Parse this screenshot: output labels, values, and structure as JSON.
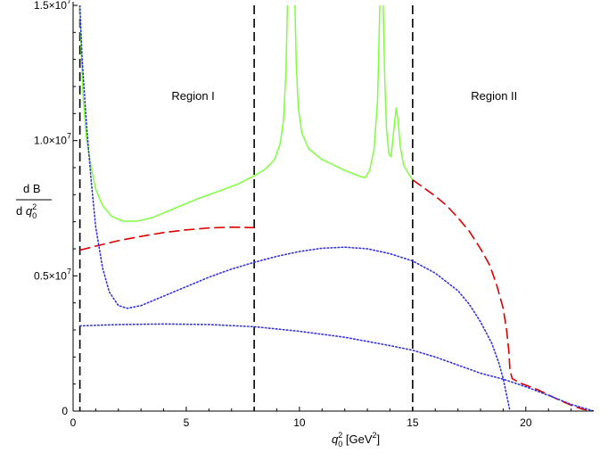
{
  "chart_data": {
    "type": "line",
    "xlim": [
      0,
      23
    ],
    "ylim": [
      0,
      15000000
    ],
    "x_ticks": [
      {
        "value": 0,
        "label": "0"
      },
      {
        "value": 5,
        "label": "5"
      },
      {
        "value": 10,
        "label": "10"
      },
      {
        "value": 15,
        "label": "15"
      },
      {
        "value": 20,
        "label": "20"
      }
    ],
    "y_ticks": [
      {
        "value": 0,
        "mantissa": "0",
        "exponent": ""
      },
      {
        "value": 5000000,
        "mantissa": "0.5×10",
        "exponent": "7"
      },
      {
        "value": 10000000,
        "mantissa": "1.0×10",
        "exponent": "7"
      },
      {
        "value": 15000000,
        "mantissa": "1.5×10",
        "exponent": "7"
      }
    ],
    "xlabel": {
      "var": "q",
      "sup": "2",
      "sub": "0",
      "unit_open": " [GeV",
      "unit_sup": "2",
      "unit_close": "]"
    },
    "ylabel": {
      "numerator": "d B",
      "denominator_d": "d ",
      "denominator_var": "q",
      "denominator_sup": "2",
      "denominator_sub": "0"
    },
    "annotations": [
      {
        "text": "Region I",
        "x": 5.3,
        "y": 11500000
      },
      {
        "text": "Region II",
        "x": 18.6,
        "y": 11500000
      }
    ],
    "vlines": [
      0.3,
      8.0,
      15.0
    ],
    "series": [
      {
        "style": "solid",
        "color": "#7fff3f",
        "segments": [
          [
            [
              0.3,
              15000000
            ],
            [
              0.35,
              13500000
            ],
            [
              0.45,
              11500000
            ],
            [
              0.6,
              10000000
            ],
            [
              0.8,
              9000000
            ],
            [
              1.0,
              8200000
            ],
            [
              1.3,
              7600000
            ],
            [
              1.7,
              7200000
            ],
            [
              2.2,
              7020000
            ],
            [
              2.8,
              7020000
            ],
            [
              3.5,
              7150000
            ],
            [
              4.5,
              7500000
            ],
            [
              5.5,
              7850000
            ],
            [
              6.5,
              8150000
            ],
            [
              7.3,
              8400000
            ],
            [
              8.0,
              8700000
            ],
            [
              8.5,
              8950000
            ],
            [
              8.9,
              9300000
            ],
            [
              9.15,
              9900000
            ],
            [
              9.3,
              10800000
            ],
            [
              9.4,
              12500000
            ],
            [
              9.47,
              15000000
            ]
          ],
          [
            [
              9.8,
              15000000
            ],
            [
              9.86,
              12800000
            ],
            [
              9.95,
              11200000
            ],
            [
              10.1,
              10300000
            ],
            [
              10.4,
              9700000
            ],
            [
              11.0,
              9300000
            ],
            [
              12.0,
              8900000
            ],
            [
              12.6,
              8700000
            ],
            [
              12.9,
              8620000
            ],
            [
              13.1,
              8900000
            ],
            [
              13.3,
              9700000
            ],
            [
              13.45,
              11500000
            ],
            [
              13.55,
              15000000
            ]
          ],
          [
            [
              13.7,
              15000000
            ],
            [
              13.76,
              12500000
            ],
            [
              13.84,
              10500000
            ],
            [
              13.95,
              9500000
            ],
            [
              14.05,
              9400000
            ],
            [
              14.18,
              10500000
            ],
            [
              14.27,
              11200000
            ],
            [
              14.35,
              10800000
            ],
            [
              14.45,
              9800000
            ],
            [
              14.6,
              9100000
            ],
            [
              14.8,
              8800000
            ],
            [
              15.0,
              8550000
            ]
          ]
        ]
      },
      {
        "style": "dashed",
        "color": "#dd0000",
        "segments": [
          [
            [
              0.3,
              5950000
            ],
            [
              1.0,
              6100000
            ],
            [
              2.0,
              6300000
            ],
            [
              3.0,
              6460000
            ],
            [
              4.0,
              6600000
            ],
            [
              5.0,
              6700000
            ],
            [
              6.0,
              6770000
            ],
            [
              7.0,
              6800000
            ],
            [
              8.0,
              6780000
            ]
          ],
          [
            [
              15.0,
              8550000
            ],
            [
              15.5,
              8250000
            ],
            [
              16.0,
              7950000
            ],
            [
              16.5,
              7600000
            ],
            [
              17.0,
              7150000
            ],
            [
              17.5,
              6650000
            ],
            [
              18.0,
              6000000
            ],
            [
              18.4,
              5400000
            ],
            [
              18.7,
              4700000
            ],
            [
              19.0,
              3800000
            ],
            [
              19.15,
              3000000
            ],
            [
              19.25,
              2200000
            ],
            [
              19.3,
              1500000
            ],
            [
              19.4,
              1200000
            ],
            [
              19.8,
              1020000
            ],
            [
              20.5,
              800000
            ],
            [
              21.0,
              600000
            ],
            [
              21.5,
              400000
            ],
            [
              22.0,
              220000
            ],
            [
              22.5,
              70000
            ],
            [
              23.0,
              0
            ]
          ]
        ]
      },
      {
        "style": "dotted",
        "color": "#3333dd",
        "segments": [
          [
            [
              0.3,
              15000000
            ],
            [
              0.4,
              13000000
            ],
            [
              0.6,
              10500000
            ],
            [
              0.8,
              8500000
            ],
            [
              1.0,
              6800000
            ],
            [
              1.3,
              5300000
            ],
            [
              1.6,
              4400000
            ],
            [
              2.0,
              3900000
            ],
            [
              2.4,
              3800000
            ],
            [
              3.0,
              3900000
            ],
            [
              4.0,
              4250000
            ],
            [
              5.0,
              4600000
            ],
            [
              6.0,
              4950000
            ],
            [
              7.0,
              5250000
            ],
            [
              8.0,
              5500000
            ],
            [
              9.0,
              5720000
            ],
            [
              10.0,
              5900000
            ],
            [
              11.0,
              6020000
            ],
            [
              12.0,
              6060000
            ],
            [
              13.0,
              6000000
            ],
            [
              14.0,
              5820000
            ],
            [
              15.0,
              5550000
            ],
            [
              16.0,
              5100000
            ],
            [
              17.0,
              4450000
            ],
            [
              17.5,
              3950000
            ],
            [
              18.0,
              3300000
            ],
            [
              18.5,
              2500000
            ],
            [
              18.8,
              1800000
            ],
            [
              19.0,
              1200000
            ],
            [
              19.2,
              400000
            ],
            [
              19.3,
              0
            ]
          ],
          [
            [
              0.3,
              3150000
            ],
            [
              2.0,
              3200000
            ],
            [
              4.0,
              3220000
            ],
            [
              6.0,
              3200000
            ],
            [
              8.0,
              3120000
            ],
            [
              10.0,
              2950000
            ],
            [
              12.0,
              2730000
            ],
            [
              14.0,
              2420000
            ],
            [
              15.0,
              2250000
            ],
            [
              16.0,
              2000000
            ],
            [
              17.0,
              1700000
            ],
            [
              18.0,
              1400000
            ],
            [
              19.0,
              1180000
            ],
            [
              20.0,
              900000
            ],
            [
              21.0,
              580000
            ],
            [
              22.0,
              250000
            ],
            [
              23.0,
              0
            ]
          ]
        ]
      }
    ]
  }
}
